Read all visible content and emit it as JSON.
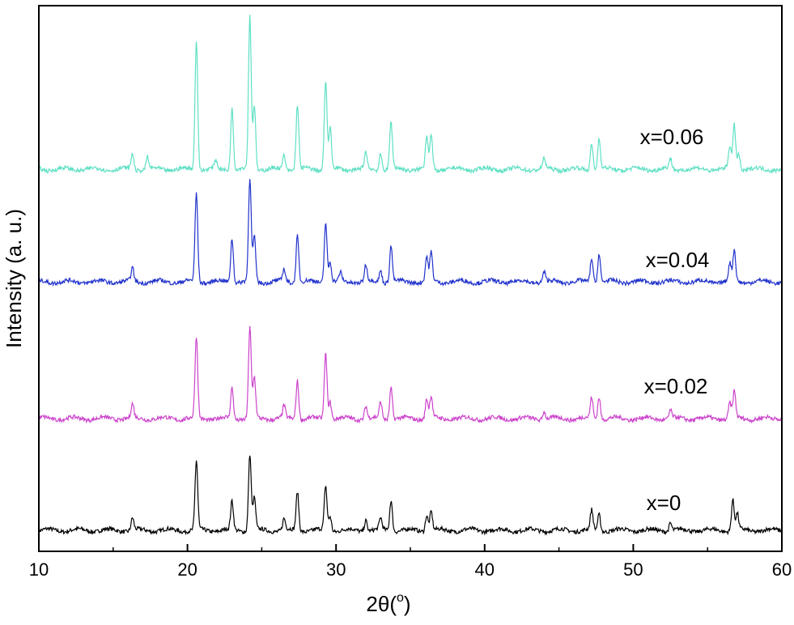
{
  "chart_data": {
    "type": "line",
    "xlabel": "2θ(",
    "xlabel_unit": "o",
    "xlabel_close": ")",
    "ylabel": "Intensity (a. u.)",
    "xlim": [
      10,
      60
    ],
    "xticks": [
      "10",
      "20",
      "30",
      "40",
      "50",
      "60"
    ],
    "y_ticks_shown": false,
    "grid": false,
    "legend": "inline labels at right of each curve",
    "series": [
      {
        "name": "x=0",
        "color": "#000000",
        "baseline": 0.0,
        "peaks": [
          [
            16.3,
            0.15
          ],
          [
            20.6,
            0.85
          ],
          [
            23.0,
            0.35
          ],
          [
            24.2,
            0.95
          ],
          [
            24.5,
            0.4
          ],
          [
            26.5,
            0.14
          ],
          [
            27.4,
            0.48
          ],
          [
            29.3,
            0.55
          ],
          [
            29.6,
            0.18
          ],
          [
            32.0,
            0.14
          ],
          [
            33.0,
            0.14
          ],
          [
            33.7,
            0.38
          ],
          [
            36.1,
            0.2
          ],
          [
            36.4,
            0.24
          ],
          [
            47.2,
            0.24
          ],
          [
            47.7,
            0.2
          ],
          [
            52.5,
            0.1
          ],
          [
            56.7,
            0.38
          ],
          [
            57.0,
            0.2
          ]
        ]
      },
      {
        "name": "x=0.02",
        "color": "#CC44CC",
        "baseline": 1.0,
        "peaks": [
          [
            16.3,
            0.17
          ],
          [
            20.6,
            1.0
          ],
          [
            23.0,
            0.38
          ],
          [
            24.2,
            1.13
          ],
          [
            24.5,
            0.5
          ],
          [
            26.5,
            0.15
          ],
          [
            27.4,
            0.48
          ],
          [
            29.3,
            0.82
          ],
          [
            29.6,
            0.22
          ],
          [
            32.0,
            0.16
          ],
          [
            33.0,
            0.2
          ],
          [
            33.7,
            0.4
          ],
          [
            36.1,
            0.25
          ],
          [
            36.4,
            0.27
          ],
          [
            44.0,
            0.1
          ],
          [
            47.2,
            0.26
          ],
          [
            47.7,
            0.28
          ],
          [
            52.5,
            0.1
          ],
          [
            56.5,
            0.2
          ],
          [
            56.8,
            0.33
          ]
        ]
      },
      {
        "name": "x=0.04",
        "color": "#2233CC",
        "baseline": 2.0,
        "peaks": [
          [
            16.3,
            0.16
          ],
          [
            20.6,
            1.1
          ],
          [
            23.0,
            0.55
          ],
          [
            24.2,
            1.27
          ],
          [
            24.5,
            0.55
          ],
          [
            26.5,
            0.15
          ],
          [
            27.4,
            0.58
          ],
          [
            29.3,
            0.75
          ],
          [
            29.6,
            0.25
          ],
          [
            30.3,
            0.1
          ],
          [
            32.0,
            0.2
          ],
          [
            33.0,
            0.15
          ],
          [
            33.7,
            0.45
          ],
          [
            36.1,
            0.3
          ],
          [
            36.4,
            0.35
          ],
          [
            44.0,
            0.12
          ],
          [
            47.2,
            0.3
          ],
          [
            47.7,
            0.35
          ],
          [
            56.5,
            0.22
          ],
          [
            56.8,
            0.38
          ]
        ]
      },
      {
        "name": "x=0.06",
        "color": "#5FE0C4",
        "baseline": 3.0,
        "peaks": [
          [
            16.3,
            0.2
          ],
          [
            17.3,
            0.15
          ],
          [
            20.6,
            1.6
          ],
          [
            21.9,
            0.1
          ],
          [
            23.0,
            0.76
          ],
          [
            24.2,
            1.9
          ],
          [
            24.5,
            0.8
          ],
          [
            26.5,
            0.18
          ],
          [
            27.4,
            0.8
          ],
          [
            29.3,
            1.1
          ],
          [
            29.6,
            0.5
          ],
          [
            32.0,
            0.2
          ],
          [
            33.0,
            0.2
          ],
          [
            33.7,
            0.58
          ],
          [
            36.1,
            0.4
          ],
          [
            36.4,
            0.42
          ],
          [
            44.0,
            0.12
          ],
          [
            47.2,
            0.33
          ],
          [
            47.7,
            0.38
          ],
          [
            52.5,
            0.12
          ],
          [
            56.5,
            0.28
          ],
          [
            56.8,
            0.55
          ],
          [
            57.1,
            0.2
          ]
        ]
      }
    ]
  }
}
